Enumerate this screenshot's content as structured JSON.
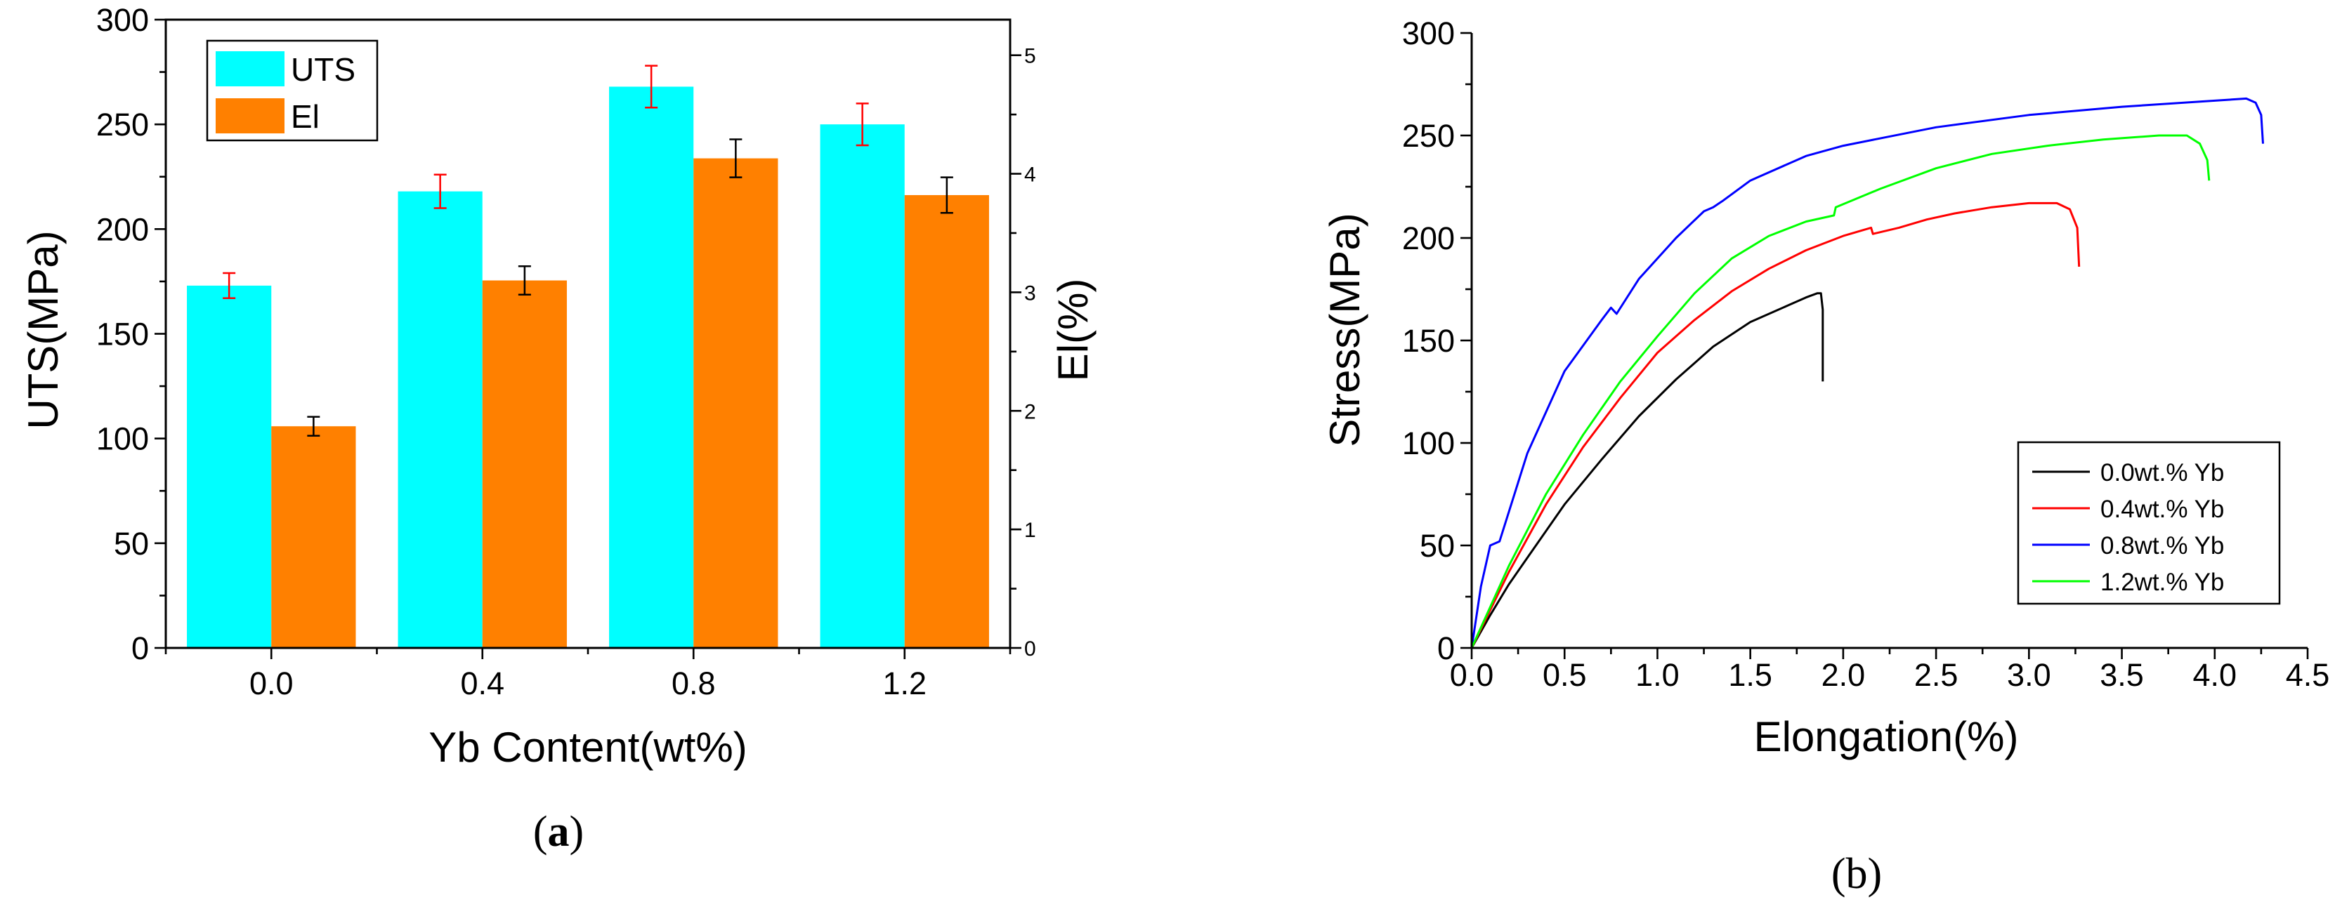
{
  "chart_data": [
    {
      "type": "bar",
      "panel_label": "(a)",
      "panel_label_bold": "a",
      "title": "",
      "xlabel": "Yb Content(wt%)",
      "ylabel": "UTS(MPa)",
      "y2label": "El(%)",
      "categories": [
        "0.0",
        "0.4",
        "0.8",
        "1.2"
      ],
      "ylim": [
        0,
        300
      ],
      "y2lim": [
        0,
        5.3
      ],
      "yticks": [
        "0",
        "50",
        "100",
        "150",
        "200",
        "250",
        "300"
      ],
      "y2ticks": [
        "0",
        "1",
        "2",
        "3",
        "4",
        "5"
      ],
      "series": [
        {
          "name": "UTS",
          "axis": "left",
          "color": "#00FFFF",
          "error_color": "#FF0000",
          "values": [
            173,
            218,
            268,
            250
          ],
          "errors": [
            6,
            8,
            10,
            10
          ]
        },
        {
          "name": "El",
          "axis": "right",
          "color": "#FF8000",
          "error_color": "#000000",
          "values": [
            1.87,
            3.1,
            4.13,
            3.82
          ],
          "errors": [
            0.08,
            0.12,
            0.16,
            0.15
          ]
        }
      ],
      "legend": [
        "UTS",
        "El"
      ],
      "legend_position": "top-left"
    },
    {
      "type": "line",
      "panel_label": "(b)",
      "title": "",
      "xlabel": "Elongation(%)",
      "ylabel": "Stress(MPa)",
      "xlim": [
        0,
        4.5
      ],
      "ylim": [
        0,
        300
      ],
      "xticks": [
        "0.0",
        "0.5",
        "1.0",
        "1.5",
        "2.0",
        "2.5",
        "3.0",
        "3.5",
        "4.0",
        "4.5"
      ],
      "yticks": [
        "0",
        "50",
        "100",
        "150",
        "200",
        "250",
        "300"
      ],
      "legend_position": "bottom-right",
      "series": [
        {
          "name": "0.0wt.% Yb",
          "color": "#000000",
          "x": [
            0,
            0.1,
            0.2,
            0.3,
            0.5,
            0.7,
            0.9,
            1.1,
            1.3,
            1.5,
            1.7,
            1.8,
            1.86,
            1.88,
            1.89,
            1.89
          ],
          "y": [
            0,
            16,
            31,
            44,
            70,
            92,
            113,
            131,
            147,
            159,
            167,
            171,
            173,
            173,
            165,
            130
          ]
        },
        {
          "name": "0.4wt.% Yb",
          "color": "#FF0000",
          "x": [
            0,
            0.2,
            0.4,
            0.6,
            0.8,
            1.0,
            1.2,
            1.4,
            1.6,
            1.8,
            2.0,
            2.15,
            2.16,
            2.3,
            2.45,
            2.6,
            2.8,
            3.0,
            3.15,
            3.22,
            3.26,
            3.27
          ],
          "y": [
            0,
            37,
            70,
            98,
            122,
            144,
            160,
            174,
            185,
            194,
            201,
            205,
            202,
            205,
            209,
            212,
            215,
            217,
            217,
            214,
            205,
            186
          ]
        },
        {
          "name": "0.8wt.% Yb",
          "color": "#0000FF",
          "x": [
            0,
            0.05,
            0.1,
            0.15,
            0.3,
            0.5,
            0.7,
            0.75,
            0.78,
            0.9,
            1.1,
            1.25,
            1.3,
            1.35,
            1.5,
            1.8,
            2.0,
            2.5,
            3.0,
            3.5,
            4.0,
            4.17,
            4.22,
            4.25,
            4.26
          ],
          "y": [
            0,
            30,
            50,
            52,
            95,
            135,
            160,
            166,
            163,
            180,
            200,
            213,
            215,
            218,
            228,
            240,
            245,
            254,
            260,
            264,
            267,
            268,
            266,
            260,
            246
          ]
        },
        {
          "name": "1.2wt.% Yb",
          "color": "#00FF00",
          "x": [
            0,
            0.2,
            0.4,
            0.6,
            0.8,
            1.0,
            1.2,
            1.4,
            1.6,
            1.8,
            1.95,
            1.96,
            2.2,
            2.5,
            2.8,
            3.1,
            3.4,
            3.7,
            3.85,
            3.92,
            3.96,
            3.97
          ],
          "y": [
            0,
            40,
            75,
            104,
            130,
            152,
            173,
            190,
            201,
            208,
            211,
            215,
            224,
            234,
            241,
            245,
            248,
            250,
            250,
            246,
            238,
            228
          ]
        }
      ]
    }
  ]
}
